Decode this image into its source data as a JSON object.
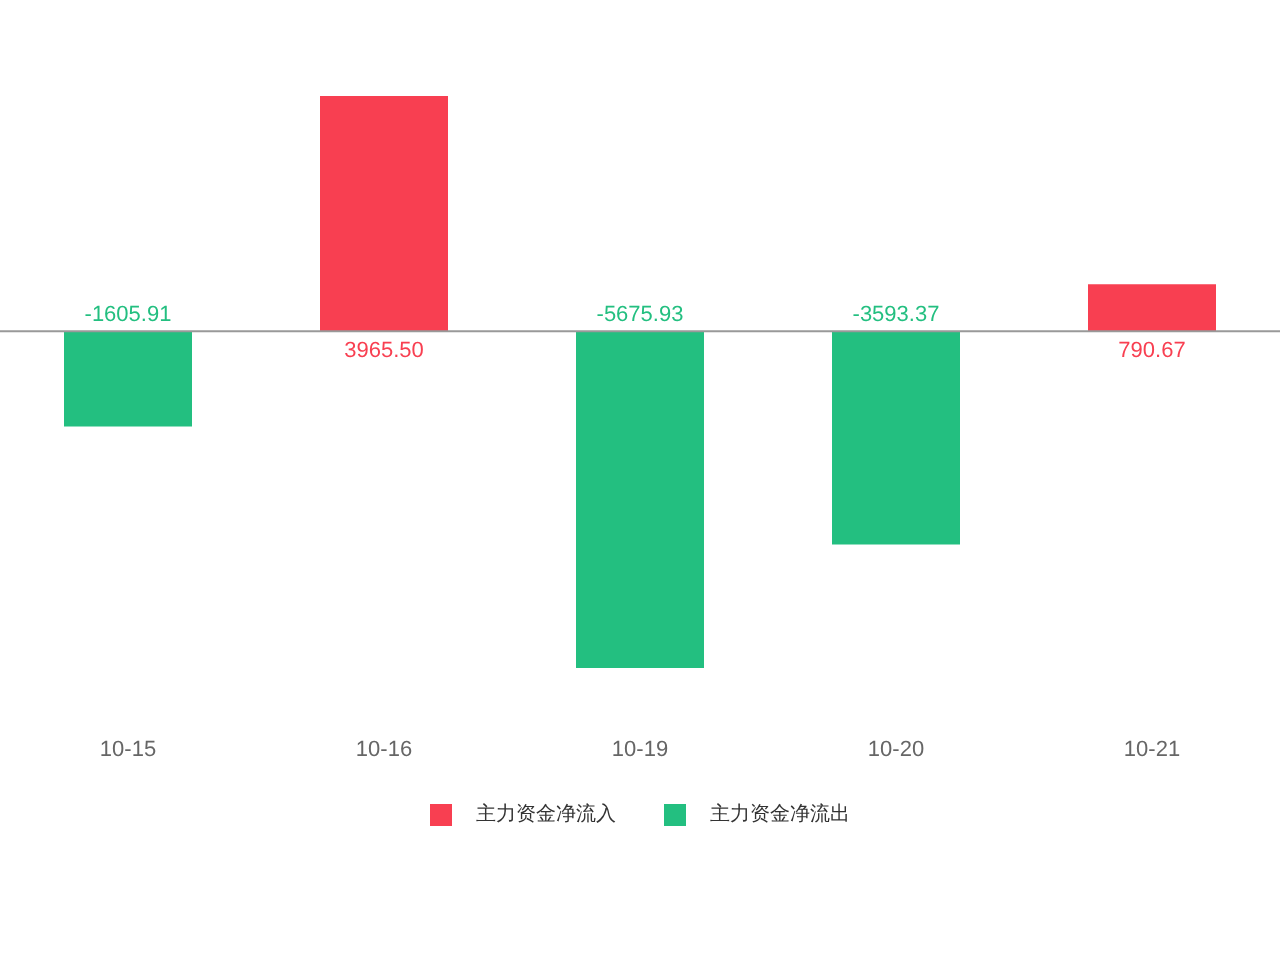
{
  "chart_data": {
    "type": "bar",
    "categories": [
      "10-15",
      "10-16",
      "10-19",
      "10-20",
      "10-21"
    ],
    "stacked": true,
    "legend": "bottom",
    "series": [
      {
        "name": "主力资金净流入",
        "color": "#f83f51",
        "values": [
          null,
          3965.5,
          null,
          null,
          790.67
        ],
        "value_labels": [
          null,
          "3965.50",
          null,
          null,
          "790.67"
        ]
      },
      {
        "name": "主力资金净流出",
        "color": "#23bf80",
        "values": [
          -1605.91,
          null,
          -5675.93,
          -3593.37,
          null
        ],
        "value_labels": [
          "-1605.91",
          null,
          "-5675.93",
          "-3593.37",
          null
        ]
      }
    ]
  }
}
